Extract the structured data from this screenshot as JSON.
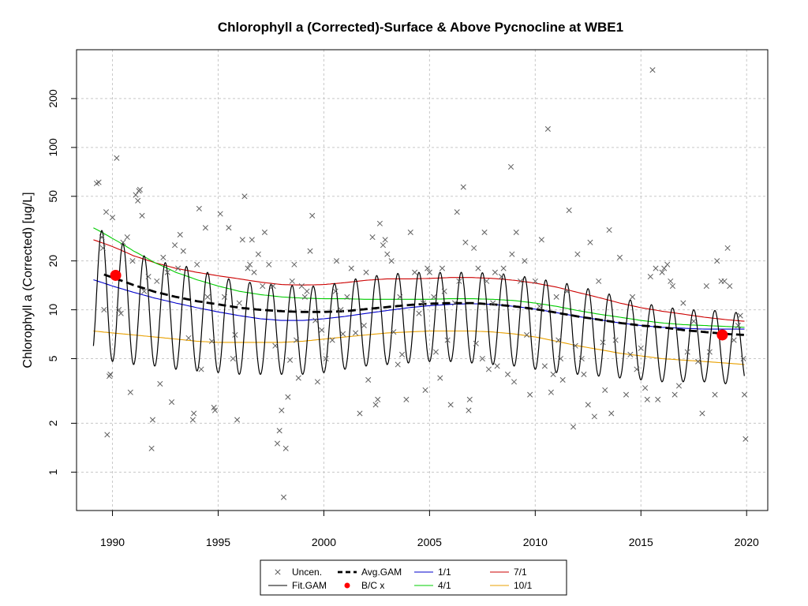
{
  "chart_data": {
    "type": "line",
    "title": "Chlorophyll a (Corrected)-Surface & Above Pycnocline at WBE1",
    "xlabel": "",
    "ylabel": "Chlorophyll a (Corrected) [ug/L]",
    "y_scale": "log",
    "xlim": [
      1988.3,
      2021.0
    ],
    "ylim": [
      0.58,
      400
    ],
    "grid": true,
    "x_ticks": [
      1990,
      1995,
      2000,
      2005,
      2010,
      2015,
      2020
    ],
    "x_tick_labels": [
      "1990",
      "1995",
      "2000",
      "2005",
      "2010",
      "2015",
      "2020"
    ],
    "y_ticks": [
      1,
      2,
      5,
      10,
      20,
      50,
      100,
      200
    ],
    "y_tick_labels": [
      "1",
      "2",
      "5",
      "10",
      "20",
      "50",
      "100",
      "200"
    ],
    "legend": {
      "placement": "bottom-center",
      "entries": [
        {
          "label": "Uncen.",
          "kind": "point-x",
          "color": "#555555"
        },
        {
          "label": "Fit.GAM",
          "kind": "line",
          "color": "#000000"
        },
        {
          "label": "Avg.GAM",
          "kind": "dashed-line",
          "color": "#000000"
        },
        {
          "label": "B/C x",
          "kind": "point-dot",
          "color": "#ff0000"
        },
        {
          "label": "1/1",
          "kind": "line",
          "color": "#0000cc"
        },
        {
          "label": "4/1",
          "kind": "line",
          "color": "#00cc00"
        },
        {
          "label": "7/1",
          "kind": "line",
          "color": "#cc0000"
        },
        {
          "label": "10/1",
          "kind": "line",
          "color": "#e8a000"
        }
      ]
    },
    "series": [
      {
        "name": "7/1",
        "color": "#cc0000",
        "x": [
          1989.1,
          1990,
          1991,
          1992,
          1993,
          1994,
          1995,
          1996,
          1997,
          1998,
          1999,
          2000,
          2001,
          2002,
          2003,
          2004,
          2005,
          2006,
          2007,
          2008,
          2009,
          2010,
          2011,
          2012,
          2013,
          2014,
          2015,
          2016,
          2017,
          2018,
          2019,
          2019.9
        ],
        "y": [
          27,
          24.5,
          21.5,
          19.5,
          18,
          17,
          16.2,
          15.5,
          14.8,
          14.3,
          14.2,
          14.3,
          14.7,
          15.2,
          15.5,
          15.5,
          15.6,
          15.8,
          15.8,
          15.6,
          15.2,
          14.6,
          13.8,
          12.8,
          11.9,
          11.0,
          10.3,
          9.8,
          9.4,
          9.0,
          8.7,
          8.5
        ]
      },
      {
        "name": "4/1",
        "color": "#00cc00",
        "x": [
          1989.1,
          1990,
          1991,
          1992,
          1993,
          1994,
          1995,
          1996,
          1997,
          1998,
          1999,
          2000,
          2001,
          2002,
          2003,
          2004,
          2005,
          2006,
          2007,
          2008,
          2009,
          2010,
          2011,
          2012,
          2013,
          2014,
          2015,
          2016,
          2017,
          2018,
          2019,
          2019.9
        ],
        "y": [
          32,
          27.5,
          23,
          19.5,
          17,
          15.3,
          14,
          13,
          12.4,
          12.0,
          11.8,
          11.7,
          11.7,
          11.6,
          11.6,
          11.6,
          11.6,
          11.7,
          11.7,
          11.6,
          11.4,
          11.0,
          10.5,
          9.9,
          9.4,
          9.0,
          8.6,
          8.3,
          8.1,
          8.0,
          7.9,
          7.8
        ]
      },
      {
        "name": "1/1",
        "color": "#0000cc",
        "x": [
          1989.1,
          1990,
          1991,
          1992,
          1993,
          1994,
          1995,
          1996,
          1997,
          1998,
          1999,
          2000,
          2001,
          2002,
          2003,
          2004,
          2005,
          2006,
          2007,
          2008,
          2009,
          2010,
          2011,
          2012,
          2013,
          2014,
          2015,
          2016,
          2017,
          2018,
          2019,
          2019.9
        ],
        "y": [
          15.3,
          14.0,
          12.8,
          11.8,
          11.0,
          10.3,
          9.7,
          9.2,
          8.8,
          8.6,
          8.6,
          8.8,
          9.1,
          9.5,
          9.9,
          10.3,
          10.6,
          10.8,
          10.9,
          10.8,
          10.5,
          10.1,
          9.6,
          9.1,
          8.7,
          8.3,
          8.0,
          7.8,
          7.7,
          7.6,
          7.6,
          7.6
        ]
      },
      {
        "name": "10/1",
        "color": "#e8a000",
        "x": [
          1989.1,
          1990,
          1991,
          1992,
          1993,
          1994,
          1995,
          1996,
          1997,
          1998,
          1999,
          2000,
          2001,
          2002,
          2003,
          2004,
          2005,
          2006,
          2007,
          2008,
          2009,
          2010,
          2011,
          2012,
          2013,
          2014,
          2015,
          2016,
          2017,
          2018,
          2019,
          2019.9
        ],
        "y": [
          7.4,
          7.2,
          7.0,
          6.8,
          6.6,
          6.4,
          6.3,
          6.3,
          6.3,
          6.3,
          6.4,
          6.6,
          6.8,
          7.0,
          7.2,
          7.3,
          7.4,
          7.4,
          7.4,
          7.3,
          7.1,
          6.8,
          6.4,
          6.0,
          5.7,
          5.4,
          5.2,
          5.0,
          4.9,
          4.8,
          4.7,
          4.6
        ]
      },
      {
        "name": "Avg.GAM",
        "color": "#000000",
        "x": [
          1989.6,
          1990,
          1991,
          1992,
          1993,
          1994,
          1995,
          1996,
          1997,
          1998,
          1999,
          2000,
          2001,
          2002,
          2003,
          2004,
          2005,
          2006,
          2007,
          2008,
          2009,
          2010,
          2011,
          2012,
          2013,
          2014,
          2015,
          2016,
          2017,
          2018,
          2019,
          2019.9
        ],
        "y": [
          16.5,
          15.8,
          14.2,
          12.9,
          12.0,
          11.3,
          10.8,
          10.3,
          10.0,
          9.8,
          9.7,
          9.7,
          9.8,
          10.1,
          10.4,
          10.7,
          10.9,
          11.0,
          11.0,
          10.8,
          10.5,
          10.1,
          9.6,
          9.1,
          8.7,
          8.3,
          8.0,
          7.8,
          7.5,
          7.3,
          7.1,
          7.0
        ]
      },
      {
        "name": "Fit.GAM",
        "color": "#000000",
        "peaks_month": 7,
        "x": [
          1989.1,
          1990,
          1991,
          1992,
          1993,
          1994,
          1995,
          1996,
          1997,
          1998,
          1999,
          2000,
          2001,
          2002,
          2003,
          2004,
          2005,
          2006,
          2007,
          2008,
          2009,
          2010,
          2011,
          2012,
          2013,
          2014,
          2015,
          2016,
          2017,
          2018,
          2019,
          2019.9
        ],
        "peaks": [
          33,
          28,
          23,
          20,
          19,
          18,
          16,
          15,
          14.5,
          14.2,
          14,
          14,
          15,
          16,
          16.5,
          17,
          17,
          17,
          17,
          16.8,
          16.5,
          15.5,
          15,
          14,
          13,
          12,
          11,
          10.5,
          10,
          10,
          9.8,
          9.5
        ],
        "troughs": [
          5.0,
          4.8,
          4.6,
          4.5,
          4.3,
          4.2,
          4.1,
          4.0,
          4.0,
          4.0,
          4.0,
          4.1,
          4.3,
          4.5,
          4.6,
          4.7,
          4.8,
          4.8,
          4.7,
          4.6,
          4.5,
          4.3,
          4.1,
          4.0,
          3.9,
          3.8,
          3.7,
          3.6,
          3.6,
          3.6,
          3.5,
          3.5
        ]
      }
    ],
    "bc_points": [
      {
        "x": 1990.15,
        "y": 16.3
      },
      {
        "x": 2018.85,
        "y": 7.0
      }
    ],
    "points": [
      [
        1989.25,
        60
      ],
      [
        1989.35,
        61
      ],
      [
        1989.5,
        28
      ],
      [
        1989.55,
        24
      ],
      [
        1989.6,
        10
      ],
      [
        1989.7,
        40
      ],
      [
        1989.75,
        1.7
      ],
      [
        1989.85,
        3.9
      ],
      [
        1989.9,
        4.0
      ],
      [
        1990.0,
        37
      ],
      [
        1990.2,
        86
      ],
      [
        1990.3,
        10
      ],
      [
        1990.4,
        9.5
      ],
      [
        1990.5,
        26
      ],
      [
        1990.7,
        28
      ],
      [
        1990.85,
        3.1
      ],
      [
        1990.95,
        20
      ],
      [
        1991.1,
        51
      ],
      [
        1991.2,
        47
      ],
      [
        1991.25,
        54
      ],
      [
        1991.3,
        55
      ],
      [
        1991.4,
        38
      ],
      [
        1991.5,
        13
      ],
      [
        1991.7,
        16
      ],
      [
        1991.85,
        1.4
      ],
      [
        1991.9,
        2.1
      ],
      [
        1992.1,
        15
      ],
      [
        1992.25,
        3.5
      ],
      [
        1992.4,
        21
      ],
      [
        1992.6,
        17
      ],
      [
        1992.8,
        2.7
      ],
      [
        1992.95,
        25
      ],
      [
        1993.1,
        18
      ],
      [
        1993.2,
        29
      ],
      [
        1993.35,
        23
      ],
      [
        1993.6,
        6.7
      ],
      [
        1993.8,
        2.1
      ],
      [
        1993.85,
        2.3
      ],
      [
        1994.0,
        19
      ],
      [
        1994.1,
        42
      ],
      [
        1994.2,
        4.3
      ],
      [
        1994.4,
        32
      ],
      [
        1994.5,
        12
      ],
      [
        1994.7,
        6.4
      ],
      [
        1994.8,
        2.5
      ],
      [
        1994.85,
        2.4
      ],
      [
        1995.1,
        39
      ],
      [
        1995.3,
        12
      ],
      [
        1995.5,
        32
      ],
      [
        1995.7,
        5.0
      ],
      [
        1995.8,
        7.0
      ],
      [
        1995.9,
        2.1
      ],
      [
        1996.0,
        11
      ],
      [
        1996.15,
        27
      ],
      [
        1996.25,
        50
      ],
      [
        1996.4,
        18
      ],
      [
        1996.5,
        19
      ],
      [
        1996.6,
        27
      ],
      [
        1996.7,
        17
      ],
      [
        1996.9,
        22
      ],
      [
        1997.1,
        14
      ],
      [
        1997.2,
        30
      ],
      [
        1997.4,
        19
      ],
      [
        1997.6,
        14
      ],
      [
        1997.7,
        6.0
      ],
      [
        1997.8,
        1.5
      ],
      [
        1997.9,
        1.8
      ],
      [
        1998.0,
        2.4
      ],
      [
        1998.1,
        0.7
      ],
      [
        1998.2,
        1.4
      ],
      [
        1998.3,
        2.9
      ],
      [
        1998.4,
        4.9
      ],
      [
        1998.5,
        15
      ],
      [
        1998.6,
        19
      ],
      [
        1998.7,
        6.5
      ],
      [
        1998.8,
        3.8
      ],
      [
        1998.95,
        14
      ],
      [
        1999.1,
        12
      ],
      [
        1999.2,
        13
      ],
      [
        1999.35,
        23
      ],
      [
        1999.45,
        38
      ],
      [
        1999.6,
        8.6
      ],
      [
        1999.7,
        3.6
      ],
      [
        1999.9,
        7.5
      ],
      [
        2000.1,
        5.0
      ],
      [
        2000.4,
        6.5
      ],
      [
        2000.55,
        13
      ],
      [
        2000.6,
        20
      ],
      [
        2000.8,
        10
      ],
      [
        2000.9,
        7.1
      ],
      [
        2001.1,
        12
      ],
      [
        2001.3,
        18
      ],
      [
        2001.5,
        7.2
      ],
      [
        2001.7,
        2.3
      ],
      [
        2001.9,
        8.0
      ],
      [
        2002.0,
        17
      ],
      [
        2002.1,
        3.7
      ],
      [
        2002.3,
        28
      ],
      [
        2002.45,
        2.6
      ],
      [
        2002.55,
        2.8
      ],
      [
        2002.65,
        34
      ],
      [
        2002.8,
        25
      ],
      [
        2002.9,
        27
      ],
      [
        2003.0,
        22
      ],
      [
        2003.2,
        20
      ],
      [
        2003.3,
        7.3
      ],
      [
        2003.5,
        4.6
      ],
      [
        2003.6,
        12
      ],
      [
        2003.7,
        5.3
      ],
      [
        2003.9,
        2.8
      ],
      [
        2004.1,
        30
      ],
      [
        2004.3,
        17
      ],
      [
        2004.5,
        9.5
      ],
      [
        2004.7,
        11
      ],
      [
        2004.8,
        3.2
      ],
      [
        2004.9,
        18
      ],
      [
        2005.0,
        17
      ],
      [
        2005.2,
        12
      ],
      [
        2005.3,
        5.5
      ],
      [
        2005.5,
        3.8
      ],
      [
        2005.6,
        18
      ],
      [
        2005.7,
        13
      ],
      [
        2005.85,
        6.5
      ],
      [
        2006.0,
        2.6
      ],
      [
        2006.2,
        11
      ],
      [
        2006.3,
        40
      ],
      [
        2006.4,
        15
      ],
      [
        2006.6,
        57
      ],
      [
        2006.7,
        26
      ],
      [
        2006.85,
        2.4
      ],
      [
        2006.9,
        2.8
      ],
      [
        2007.1,
        24
      ],
      [
        2007.2,
        6.2
      ],
      [
        2007.3,
        18
      ],
      [
        2007.5,
        5.0
      ],
      [
        2007.6,
        30
      ],
      [
        2007.7,
        15
      ],
      [
        2007.8,
        4.3
      ],
      [
        2008.0,
        11
      ],
      [
        2008.1,
        17
      ],
      [
        2008.2,
        4.5
      ],
      [
        2008.4,
        16
      ],
      [
        2008.5,
        18
      ],
      [
        2008.7,
        4.0
      ],
      [
        2008.85,
        76
      ],
      [
        2008.9,
        22
      ],
      [
        2009.0,
        3.6
      ],
      [
        2009.1,
        30
      ],
      [
        2009.3,
        15
      ],
      [
        2009.5,
        20
      ],
      [
        2009.6,
        7.0
      ],
      [
        2009.75,
        3.0
      ],
      [
        2010.0,
        15
      ],
      [
        2010.2,
        10.5
      ],
      [
        2010.3,
        27
      ],
      [
        2010.45,
        4.5
      ],
      [
        2010.6,
        130
      ],
      [
        2010.75,
        3.1
      ],
      [
        2010.85,
        4.0
      ],
      [
        2011.0,
        12
      ],
      [
        2011.1,
        6.5
      ],
      [
        2011.2,
        5.0
      ],
      [
        2011.3,
        3.7
      ],
      [
        2011.5,
        13
      ],
      [
        2011.6,
        41
      ],
      [
        2011.8,
        1.9
      ],
      [
        2011.9,
        6.0
      ],
      [
        2012.0,
        22
      ],
      [
        2012.2,
        5.0
      ],
      [
        2012.3,
        4.0
      ],
      [
        2012.5,
        2.6
      ],
      [
        2012.6,
        26
      ],
      [
        2012.8,
        2.2
      ],
      [
        2013.0,
        15
      ],
      [
        2013.2,
        6.3
      ],
      [
        2013.3,
        3.2
      ],
      [
        2013.5,
        31
      ],
      [
        2013.6,
        2.3
      ],
      [
        2013.8,
        6.5
      ],
      [
        2014.0,
        21
      ],
      [
        2014.3,
        3.0
      ],
      [
        2014.5,
        5.3
      ],
      [
        2014.6,
        12
      ],
      [
        2014.8,
        4.3
      ],
      [
        2015.0,
        5.8
      ],
      [
        2015.2,
        3.3
      ],
      [
        2015.3,
        2.8
      ],
      [
        2015.45,
        16
      ],
      [
        2015.55,
        300
      ],
      [
        2015.7,
        18
      ],
      [
        2015.8,
        2.8
      ],
      [
        2016.0,
        17
      ],
      [
        2016.1,
        18
      ],
      [
        2016.25,
        19
      ],
      [
        2016.4,
        15
      ],
      [
        2016.5,
        14
      ],
      [
        2016.6,
        3.0
      ],
      [
        2016.8,
        3.4
      ],
      [
        2017.0,
        11
      ],
      [
        2017.2,
        5.5
      ],
      [
        2017.5,
        8.5
      ],
      [
        2017.7,
        4.8
      ],
      [
        2017.9,
        2.3
      ],
      [
        2018.1,
        14
      ],
      [
        2018.25,
        5.5
      ],
      [
        2018.5,
        3.0
      ],
      [
        2018.6,
        20
      ],
      [
        2018.8,
        15
      ],
      [
        2018.95,
        15
      ],
      [
        2019.1,
        24
      ],
      [
        2019.2,
        14
      ],
      [
        2019.4,
        6.5
      ],
      [
        2019.6,
        8.0
      ],
      [
        2019.7,
        9.2
      ],
      [
        2019.85,
        5.0
      ],
      [
        2019.9,
        3.0
      ],
      [
        2019.95,
        1.6
      ]
    ]
  }
}
